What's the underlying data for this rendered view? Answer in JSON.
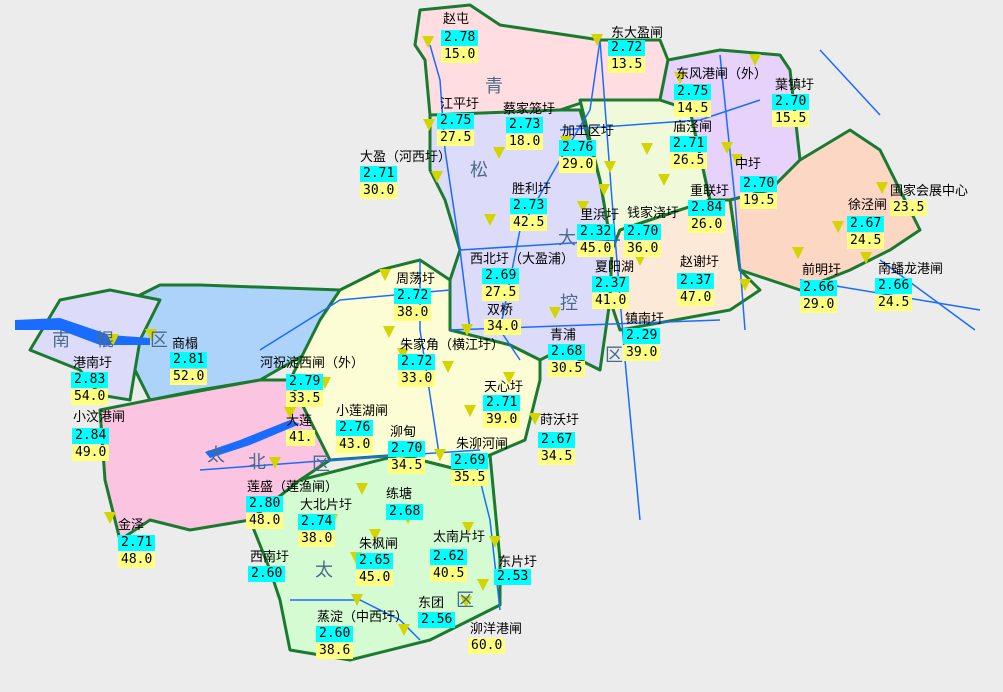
{
  "colors": {
    "background": "#ececec",
    "level_box": "#00ffff",
    "value_box": "#ffff80",
    "marker": "#d4d400",
    "boundary": "#1a7a30",
    "river": "#1a6cff"
  },
  "region_labels": [
    {
      "chars": [
        "青",
        "松",
        "大",
        "控",
        "区"
      ]
    },
    {
      "chars": [
        "南",
        "棍",
        "区"
      ]
    },
    {
      "chars": [
        "太",
        "北",
        "区"
      ]
    },
    {
      "chars": [
        "太",
        "区"
      ]
    }
  ],
  "stations": [
    {
      "name": "赵屯",
      "level": "2.78",
      "value": "15.0"
    },
    {
      "name": "东大盈闸",
      "level": "2.72",
      "value": "13.5"
    },
    {
      "name": "江平圩",
      "level": "2.75",
      "value": "27.5"
    },
    {
      "name": "蔡家笼圩",
      "level": "2.73",
      "value": "18.0"
    },
    {
      "name": "加工区圩",
      "level": "2.76",
      "value": "29.0"
    },
    {
      "name": "大盈（河西圩）",
      "level": "2.71",
      "value": "30.0"
    },
    {
      "name": "东风港闸（外）",
      "level": "2.75",
      "value": "14.5"
    },
    {
      "name": "葉镇圩",
      "level": "2.70",
      "value": "15.5"
    },
    {
      "name": "庙泾闸",
      "level": "2.71",
      "value": "26.5"
    },
    {
      "name": "中圩",
      "level": "2.70",
      "value": "19.5"
    },
    {
      "name": "重联圩",
      "level": "2.84",
      "value": "26.0"
    },
    {
      "name": "里浜圩",
      "level": "2.32",
      "value": "45.0"
    },
    {
      "name": "钱家浇圩",
      "level": "2.70",
      "value": "36.0"
    },
    {
      "name": "胜利圩",
      "level": "2.73",
      "value": "42.5"
    },
    {
      "name": "国家会展中心",
      "level": null,
      "value": "23.5"
    },
    {
      "name": "徐泾闸",
      "level": "2.67",
      "value": "24.5"
    },
    {
      "name": "西北圩（大盈浦）",
      "level": "2.69",
      "value": "27.5"
    },
    {
      "name": "夏阳湖",
      "level": "2.37",
      "value": "41.0"
    },
    {
      "name": "赵谢圩",
      "level": "2.37",
      "value": "47.0"
    },
    {
      "name": "前明圩",
      "level": "2.66",
      "value": "29.0"
    },
    {
      "name": "南蟠龙港闸",
      "level": "2.66",
      "value": "24.5"
    },
    {
      "name": "周荡圩",
      "level": "2.72",
      "value": "38.0"
    },
    {
      "name": "双桥",
      "level": null,
      "value": "34.0"
    },
    {
      "name": "朱家角（横江圩）",
      "level": "2.72",
      "value": "33.0"
    },
    {
      "name": "青浦",
      "level": "2.68",
      "value": "30.5"
    },
    {
      "name": "镇南圩",
      "level": "2.29",
      "value": "39.0"
    },
    {
      "name": "港南圩",
      "level": "2.83",
      "value": "54.0"
    },
    {
      "name": "商榻",
      "level": "2.81",
      "value": "52.0"
    },
    {
      "name": "河祝淀西闸（外）",
      "level": "2.79",
      "value": "33.5"
    },
    {
      "name": "小汶港闸",
      "level": "2.84",
      "value": "49.0"
    },
    {
      "name": "大莲",
      "level": null,
      "value": "41."
    },
    {
      "name": "小莲湖闸",
      "level": "2.76",
      "value": "43.0"
    },
    {
      "name": "泖甸",
      "level": "2.70",
      "value": "34.5"
    },
    {
      "name": "天心圩",
      "level": "2.71",
      "value": "39.0"
    },
    {
      "name": "莳沃圩",
      "level": "2.67",
      "value": "34.5"
    },
    {
      "name": "朱泖河闸",
      "level": "2.69",
      "value": "35.5"
    },
    {
      "name": "莲盛（莲渔闸）",
      "level": "2.80",
      "value": "48.0"
    },
    {
      "name": "大北片圩",
      "level": "2.74",
      "value": "38.0"
    },
    {
      "name": "练塘",
      "level": "2.68",
      "value": null
    },
    {
      "name": "金泽",
      "level": "2.71",
      "value": "48.0"
    },
    {
      "name": "西南圩",
      "level": "2.60",
      "value": null
    },
    {
      "name": "朱枫闸",
      "level": "2.65",
      "value": "45.0"
    },
    {
      "name": "太南片圩",
      "level": "2.62",
      "value": "40.5"
    },
    {
      "name": "东片圩",
      "level": "2.53",
      "value": null
    },
    {
      "name": "蒸淀（中西圩）",
      "level": "2.60",
      "value": "38.6"
    },
    {
      "name": "东团",
      "level": "2.56",
      "value": null
    },
    {
      "name": "泖洋港闸",
      "level": null,
      "value": "60.0"
    }
  ]
}
